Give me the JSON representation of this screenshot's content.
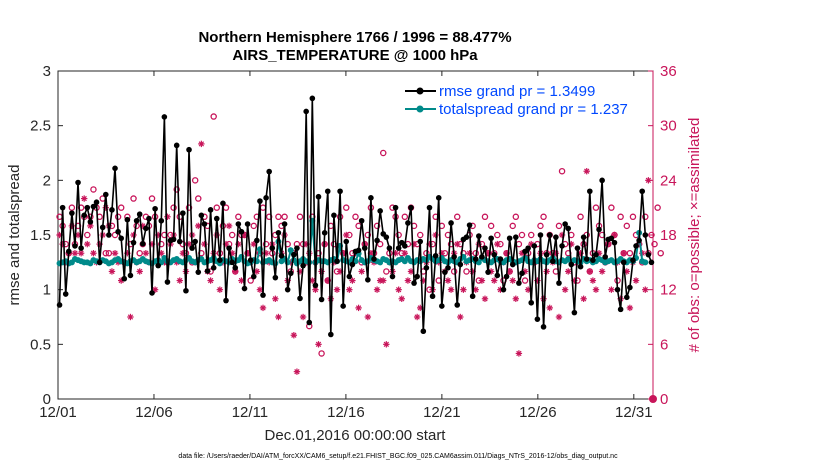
{
  "chart_data": {
    "type": "line",
    "title": "Northern Hemisphere 1766 / 1996 = 88.477%",
    "subtitle": "AIRS_TEMPERATURE @ 1000 hPa",
    "xlabel": "Dec.01,2016 00:00:00 start",
    "ylabel": "rmse and totalspread",
    "ylabel_right": "# of obs: o=possible; ×=assimilated",
    "footnote": "data file: /Users/raeder/DAI/ATM_forcXX/CAM6_setup/f.e21.FHIST_BGC.f09_025.CAM6assim.011/Diags_NTrS_2016-12/obs_diag_output.nc",
    "x_tick_labels": [
      "12/01",
      "12/06",
      "12/11",
      "12/16",
      "12/21",
      "12/26",
      "12/31"
    ],
    "x_tick_days": [
      1,
      6,
      11,
      16,
      21,
      26,
      31
    ],
    "xlim": [
      1,
      32
    ],
    "ylim": [
      0,
      3
    ],
    "y_ticks": [
      "0",
      "0.5",
      "1",
      "1.5",
      "2",
      "2.5",
      "3"
    ],
    "ylim_right": [
      0,
      36
    ],
    "y_ticks_right": [
      "0",
      "6",
      "12",
      "18",
      "24",
      "30",
      "36"
    ],
    "legend_placement": "top-right",
    "series": [
      {
        "name": "rmse grand pr = 1.3499",
        "color": "#000000",
        "marker": "hexagon",
        "axis": "left",
        "values": [
          0.86,
          1.75,
          0.96,
          1.35,
          1.7,
          1.4,
          1.98,
          1.38,
          1.68,
          1.75,
          1.62,
          1.76,
          1.8,
          1.25,
          1.57,
          1.87,
          1.5,
          1.73,
          2.11,
          1.53,
          1.47,
          1.1,
          1.64,
          1.13,
          1.43,
          1.63,
          1.69,
          1.42,
          1.56,
          1.65,
          0.97,
          1.74,
          1.22,
          1.63,
          2.58,
          1.07,
          1.45,
          1.46,
          2.32,
          1.44,
          1.7,
          0.99,
          2.28,
          1.38,
          1.44,
          1.16,
          1.68,
          1.6,
          1.17,
          1.73,
          1.2,
          1.65,
          1.27,
          1.79,
          0.9,
          1.38,
          1.25,
          1.2,
          1.6,
          1.53,
          1.01,
          1.6,
          1.27,
          1.12,
          1.45,
          1.81,
          0.95,
          1.84,
          2.08,
          1.38,
          1.11,
          1.52,
          1.31,
          1.6,
          1.0,
          1.15,
          1.32,
          1.38,
          0.92,
          1.22,
          2.63,
          0.7,
          2.75,
          1.04,
          1.85,
          0.91,
          1.52,
          1.9,
          0.59,
          1.68,
          1.26,
          1.9,
          0.85,
          1.44,
          1.12,
          1.23,
          1.35,
          1.36,
          1.63,
          1.38,
          1.09,
          1.84,
          1.28,
          1.45,
          1.72,
          1.51,
          1.48,
          1.38,
          1.12,
          1.75,
          1.38,
          1.43,
          1.4,
          1.61,
          1.75,
          1.06,
          1.12,
          1.44,
          0.62,
          1.2,
          1.75,
          0.94,
          1.31,
          1.84,
          0.85,
          1.16,
          1.2,
          1.61,
          1.3,
          0.86,
          1.23,
          1.46,
          1.48,
          1.59,
          0.94,
          1.28,
          1.49,
          1.3,
          1.38,
          1.16,
          1.47,
          1.32,
          1.13,
          1.28,
          1.0,
          1.12,
          1.47,
          1.23,
          1.48,
          1.06,
          1.15,
          1.35,
          1.38,
          0.88,
          1.4,
          0.73,
          1.5,
          0.66,
          1.32,
          1.5,
          1.26,
          1.48,
          1.06,
          1.4,
          1.6,
          1.56,
          1.23,
          0.79,
          1.38,
          1.21,
          1.48,
          1.28,
          1.9,
          1.27,
          1.32,
          1.55,
          2.0,
          1.3,
          1.46,
          1.47,
          1.43,
          1.0,
          0.82,
          1.25,
          0.93,
          1.02,
          1.27,
          1.4,
          1.45,
          1.9,
          1.5,
          1.32,
          1.25
        ]
      },
      {
        "name": "totalspread grand pr = 1.237",
        "color": "#008a8a",
        "marker": "circle",
        "axis": "left",
        "values": [
          1.24,
          1.25,
          1.26,
          1.24,
          1.25,
          1.28,
          1.27,
          1.26,
          1.25,
          1.25,
          1.24,
          1.27,
          1.26,
          1.25,
          1.27,
          1.26,
          1.24,
          1.25,
          1.27,
          1.28,
          1.26,
          1.25,
          1.24,
          1.26,
          1.27,
          1.25,
          1.26,
          1.28,
          1.26,
          1.25,
          1.24,
          1.26,
          1.27,
          1.25,
          1.29,
          1.26,
          1.25,
          1.27,
          1.28,
          1.26,
          1.25,
          1.27,
          1.29,
          1.26,
          1.25,
          1.27,
          1.28,
          1.25,
          1.26,
          1.27,
          1.29,
          1.26,
          1.24,
          1.27,
          1.26,
          1.25,
          1.28,
          1.26,
          1.27,
          1.3,
          1.26,
          1.24,
          1.25,
          1.27,
          1.26,
          1.37,
          1.25,
          1.26,
          1.27,
          1.25,
          1.24,
          1.44,
          1.26,
          1.28,
          1.25,
          1.36,
          1.27,
          1.24,
          1.26,
          1.28,
          1.26,
          1.25,
          1.63,
          1.25,
          1.27,
          1.26,
          1.26,
          1.25,
          1.27,
          1.28,
          1.26,
          1.4,
          1.27,
          1.26,
          1.25,
          1.28,
          1.26,
          1.33,
          1.27,
          1.25,
          1.26,
          1.29,
          1.27,
          1.26,
          1.25,
          1.28,
          1.27,
          1.25,
          1.26,
          1.25,
          1.27,
          1.28,
          1.26,
          1.29,
          1.26,
          1.25,
          1.27,
          1.26,
          1.28,
          1.27,
          1.3,
          1.28,
          1.26,
          1.27,
          1.29,
          1.26,
          1.25,
          1.27,
          1.26,
          1.25,
          1.28,
          1.3,
          1.26,
          1.27,
          1.28,
          1.26,
          1.25,
          1.29,
          1.27,
          1.26,
          1.25,
          1.27,
          1.28,
          1.26,
          1.25,
          1.27,
          1.28,
          1.26,
          1.25,
          1.26,
          1.27,
          1.29,
          1.26,
          1.25,
          1.27,
          1.26,
          1.28,
          1.26,
          1.25,
          1.27,
          1.29,
          1.26,
          1.25,
          1.27,
          1.26,
          1.28,
          1.25,
          1.27,
          1.26,
          1.25,
          1.28,
          1.26,
          1.27,
          1.25,
          1.26,
          1.28,
          1.27,
          1.25,
          1.26,
          1.27,
          1.25,
          1.26,
          1.28,
          1.26,
          1.25,
          1.27,
          1.26,
          1.29,
          1.52,
          1.26,
          1.25
        ]
      }
    ],
    "obs_possible": {
      "name": "o=possible",
      "color": "#c8155a",
      "marker": "circle",
      "axis": "right",
      "values": [
        20,
        19,
        17,
        16,
        21,
        17,
        19,
        21,
        20,
        18,
        20,
        23,
        21,
        20,
        22,
        16,
        16,
        19,
        18,
        20,
        21,
        15,
        20,
        17,
        22,
        19,
        16,
        17,
        20,
        19,
        22,
        20,
        15,
        17,
        18,
        15,
        18,
        21,
        23,
        20,
        17,
        16,
        21,
        15,
        24,
        22,
        16,
        20,
        19,
        14,
        31,
        21,
        16,
        19,
        21,
        17,
        18,
        14,
        20,
        18,
        18,
        16,
        13,
        19,
        20,
        16,
        21,
        17,
        20,
        16,
        18,
        20,
        19,
        20,
        17,
        14,
        16,
        17,
        20,
        17,
        15,
        8,
        20,
        15,
        16,
        5,
        17,
        13,
        19,
        17,
        14,
        20,
        16,
        21,
        18,
        16,
        20,
        19,
        15,
        17,
        18,
        21,
        16,
        19,
        17,
        27,
        14,
        16,
        21,
        20,
        18,
        16,
        20,
        17,
        21,
        19,
        17,
        18,
        14,
        16,
        12,
        17,
        20,
        13,
        19,
        16,
        18,
        17,
        14,
        20,
        17,
        16,
        14,
        18,
        19,
        16,
        13,
        17,
        20,
        16,
        19,
        16,
        18,
        17,
        13,
        16,
        14,
        19,
        20,
        17,
        18,
        13,
        16,
        18,
        15,
        17,
        19,
        20,
        16,
        18,
        16,
        14,
        19,
        25,
        17,
        16,
        18,
        15,
        13,
        20,
        17,
        18,
        14,
        16,
        21,
        19,
        18,
        15,
        17,
        21,
        18,
        13,
        20,
        16,
        19,
        16,
        20,
        18,
        17,
        15,
        20,
        16,
        18,
        17,
        21,
        16
      ]
    },
    "obs_assimilated": {
      "name": "×=assimilated",
      "color": "#c8155a",
      "marker": "asterisk",
      "axis": "right",
      "values": [
        18,
        17,
        15,
        16,
        19,
        16,
        18,
        16,
        22,
        17,
        19,
        16,
        15,
        17,
        18,
        21,
        19,
        14,
        16,
        15,
        13,
        15,
        16,
        9,
        18,
        15,
        14,
        19,
        16,
        15,
        17,
        12,
        18,
        16,
        15,
        20,
        17,
        18,
        15,
        13,
        16,
        14,
        17,
        18,
        15,
        19,
        28,
        17,
        14,
        13,
        16,
        18,
        12,
        15,
        17,
        19,
        16,
        14,
        17,
        13,
        18,
        16,
        15,
        17,
        14,
        12,
        10,
        16,
        15,
        17,
        11,
        9,
        16,
        18,
        13,
        15,
        7,
        3,
        14,
        9,
        17,
        16,
        13,
        12,
        6,
        14,
        17,
        13,
        11,
        15,
        12,
        14,
        16,
        18,
        12,
        13,
        16,
        10,
        14,
        17,
        9,
        16,
        15,
        12,
        13,
        13,
        6,
        15,
        14,
        16,
        12,
        11,
        16,
        13,
        14,
        17,
        9,
        10,
        13,
        15,
        17,
        12,
        18,
        15,
        16,
        14,
        13,
        12,
        16,
        17,
        9,
        12,
        15,
        16,
        14,
        12,
        17,
        13,
        11,
        16,
        14,
        13,
        17,
        12,
        15,
        16,
        14,
        13,
        11,
        5,
        16,
        14,
        12,
        17,
        15,
        13,
        16,
        11,
        14,
        10,
        15,
        16,
        9,
        18,
        12,
        14,
        17,
        13,
        15,
        16,
        11,
        25,
        14,
        13,
        12,
        16,
        14,
        15,
        17,
        12,
        18,
        15,
        11,
        16,
        14,
        10,
        15,
        13,
        17,
        16,
        12,
        24
      ]
    }
  }
}
